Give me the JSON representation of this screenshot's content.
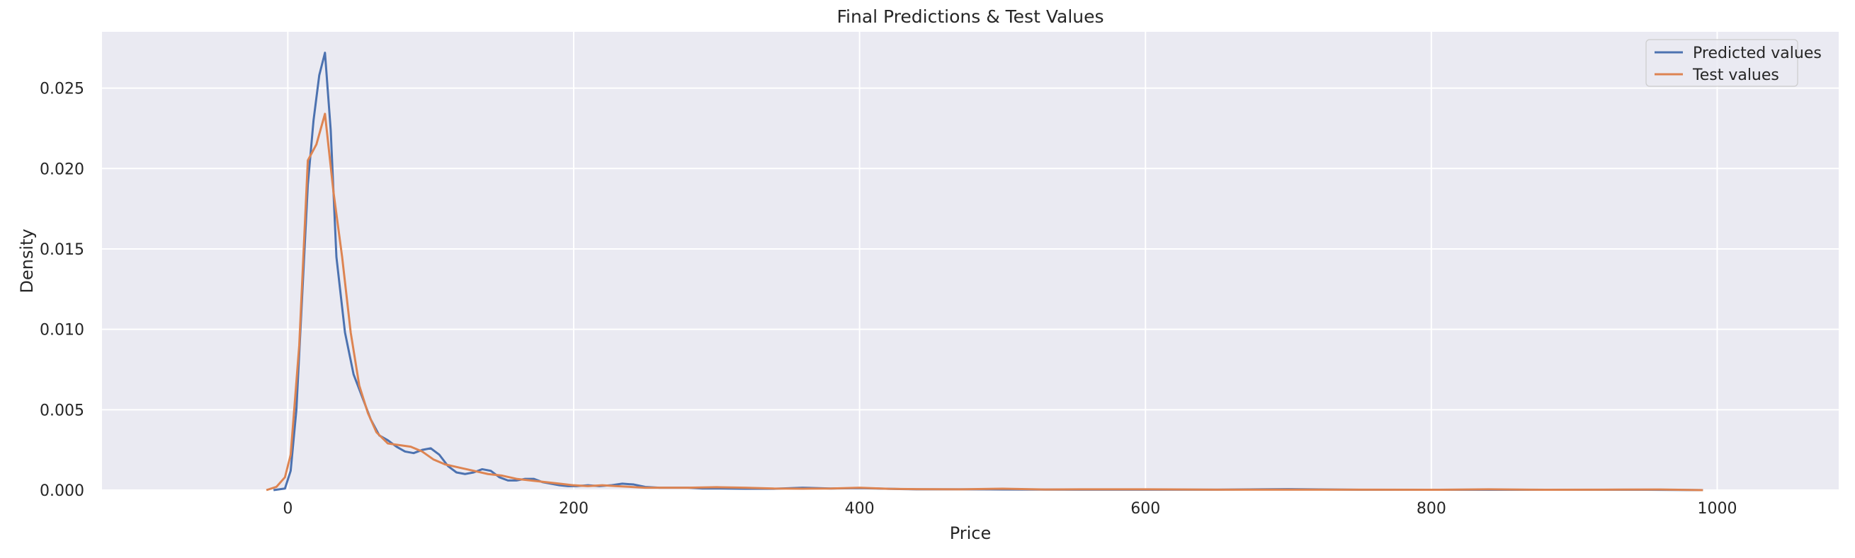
{
  "chart_data": {
    "type": "line",
    "title": "Final Predictions & Test Values",
    "xlabel": "Price",
    "ylabel": "Density",
    "xlim": [
      -130,
      1085
    ],
    "ylim": [
      0,
      0.0285
    ],
    "xticks": [
      0,
      200,
      400,
      600,
      800,
      1000
    ],
    "xtick_labels": [
      "0",
      "200",
      "400",
      "600",
      "800",
      "1000"
    ],
    "yticks": [
      0,
      0.005,
      0.01,
      0.015,
      0.02,
      0.025
    ],
    "ytick_labels": [
      "0.000",
      "0.005",
      "0.010",
      "0.015",
      "0.020",
      "0.025"
    ],
    "grid": true,
    "legend_position": "top-right",
    "series": [
      {
        "name": "Predicted values",
        "color": "#4c72b0",
        "x": [
          -10,
          -6,
          -2,
          2,
          6,
          10,
          14,
          18,
          22,
          26,
          30,
          34,
          40,
          46,
          52,
          58,
          64,
          70,
          76,
          82,
          88,
          94,
          100,
          106,
          112,
          118,
          124,
          130,
          136,
          142,
          148,
          154,
          160,
          166,
          172,
          178,
          184,
          190,
          196,
          202,
          210,
          218,
          226,
          234,
          242,
          250,
          260,
          270,
          280,
          290,
          300,
          320,
          340,
          360,
          380,
          400,
          420,
          440,
          470,
          500,
          550,
          600,
          650,
          700,
          750,
          800,
          850,
          900,
          950,
          990
        ],
        "y": [
          0.0,
          5e-05,
          0.0001,
          0.0012,
          0.005,
          0.012,
          0.019,
          0.023,
          0.0258,
          0.0272,
          0.0224,
          0.0145,
          0.0098,
          0.0072,
          0.0058,
          0.0044,
          0.0034,
          0.0031,
          0.0027,
          0.0024,
          0.0023,
          0.0025,
          0.0026,
          0.0022,
          0.0015,
          0.0011,
          0.001,
          0.0011,
          0.0013,
          0.0012,
          0.0008,
          0.0006,
          0.0006,
          0.0007,
          0.0007,
          0.0005,
          0.0004,
          0.0003,
          0.00025,
          0.00025,
          0.0003,
          0.00025,
          0.0003,
          0.0004,
          0.00035,
          0.0002,
          0.00015,
          0.00015,
          0.00015,
          0.0001,
          0.0001,
          8e-05,
          8e-05,
          0.00015,
          0.0001,
          0.00012,
          8e-05,
          5e-05,
          5e-05,
          4e-05,
          3e-05,
          3e-05,
          3e-05,
          6e-05,
          2e-05,
          2e-05,
          2e-05,
          2e-05,
          2e-05,
          0.0
        ]
      },
      {
        "name": "Test values",
        "color": "#dd8452",
        "x": [
          -15,
          -8,
          -2,
          2,
          8,
          14,
          20,
          26,
          32,
          38,
          44,
          50,
          56,
          62,
          70,
          78,
          86,
          94,
          102,
          110,
          120,
          130,
          140,
          150,
          160,
          170,
          180,
          190,
          200,
          210,
          220,
          230,
          240,
          250,
          260,
          280,
          300,
          320,
          340,
          360,
          380,
          400,
          420,
          440,
          470,
          500,
          530,
          560,
          600,
          650,
          700,
          750,
          800,
          840,
          880,
          920,
          960,
          990
        ],
        "y": [
          0.0,
          0.0002,
          0.0008,
          0.0022,
          0.009,
          0.0205,
          0.0215,
          0.0234,
          0.0185,
          0.0145,
          0.0098,
          0.0065,
          0.0048,
          0.0036,
          0.0029,
          0.0028,
          0.0027,
          0.0024,
          0.0019,
          0.0016,
          0.0014,
          0.0012,
          0.001,
          0.0009,
          0.0007,
          0.0006,
          0.0005,
          0.0004,
          0.0003,
          0.00025,
          0.0003,
          0.00025,
          0.0002,
          0.00015,
          0.00015,
          0.00015,
          0.00018,
          0.00015,
          0.0001,
          9e-05,
          0.0001,
          0.00015,
          8e-05,
          6e-05,
          5e-05,
          9e-05,
          4e-05,
          5e-05,
          5e-05,
          3e-05,
          3e-05,
          3e-05,
          2e-05,
          5e-05,
          2e-05,
          3e-05,
          4e-05,
          0.0
        ]
      }
    ]
  }
}
